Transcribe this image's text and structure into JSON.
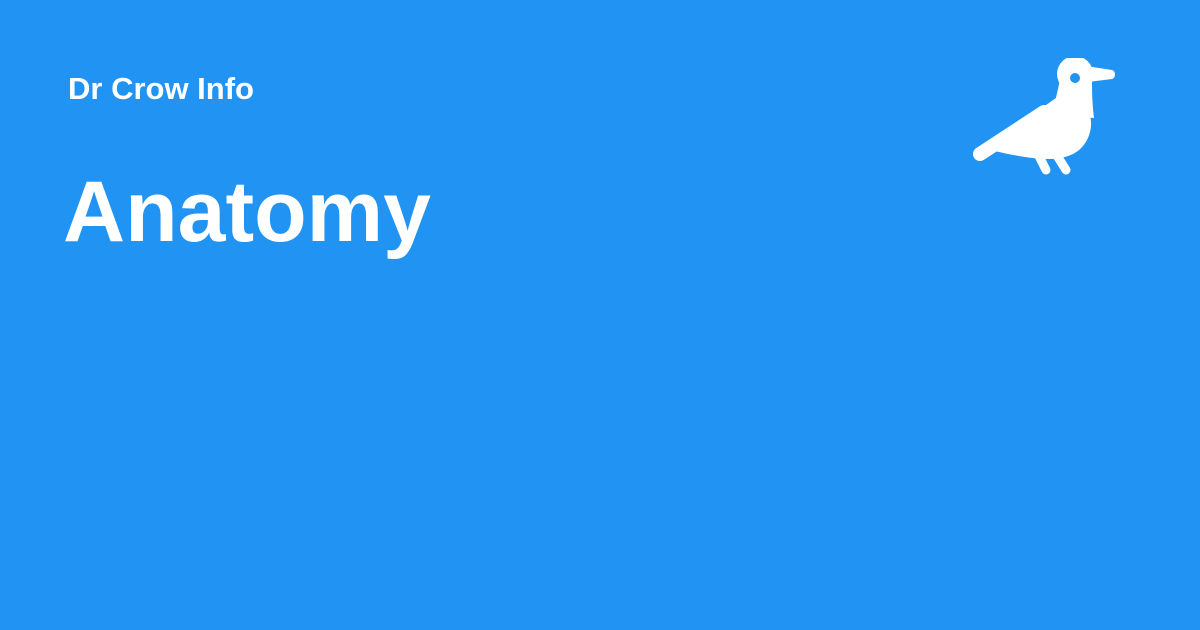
{
  "site": {
    "name": "Dr Crow Info"
  },
  "page": {
    "title": "Anatomy"
  },
  "logo": {
    "icon": "crow-icon",
    "color": "#ffffff"
  },
  "theme": {
    "background": "#2093f3",
    "text": "#ffffff"
  }
}
